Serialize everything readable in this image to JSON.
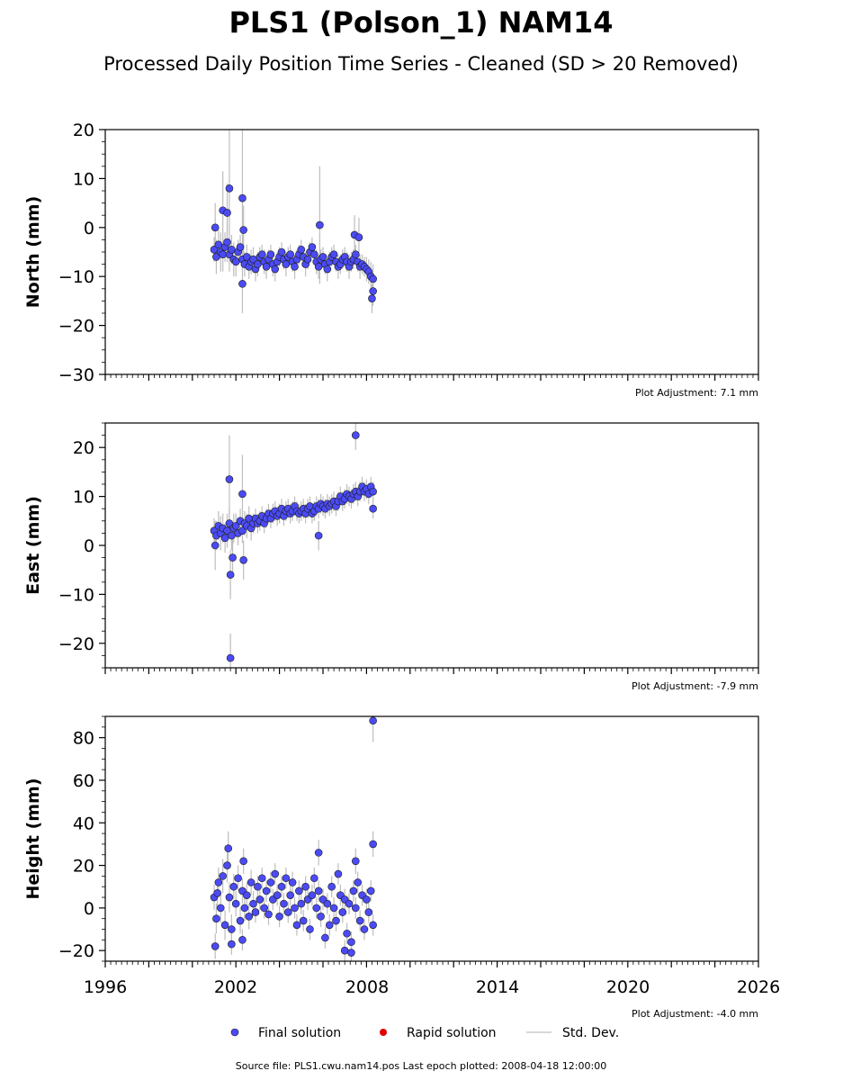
{
  "title": "PLS1 (Polson_1) NAM14",
  "subtitle": "Processed Daily Position Time Series - Cleaned (SD > 20 Removed)",
  "x_ticks": [
    "1996",
    "2002",
    "2008",
    "2014",
    "2020",
    "2026"
  ],
  "legend": {
    "final": "Final solution",
    "rapid": "Rapid solution",
    "std": "Std. Dev."
  },
  "footer": "Source file: PLS1.cwu.nam14.pos  Last epoch plotted: 2008-04-18 12:00:00",
  "colors": {
    "final": "#4b4bf5",
    "rapid": "#e00000",
    "std": "#bdbdbd",
    "marker_edge": "#1a1a1a"
  },
  "chart_data": [
    {
      "type": "scatter",
      "ylabel": "North (mm)",
      "xlim": [
        1996,
        2026
      ],
      "ylim": [
        -30,
        20
      ],
      "yticks": [
        -30,
        -20,
        -10,
        0,
        10,
        20
      ],
      "note": "Plot Adjustment: 7.1 mm",
      "series": [
        {
          "name": "Final solution",
          "x": [
            2001.0,
            2001.1,
            2001.2,
            2001.3,
            2001.4,
            2001.5,
            2001.6,
            2001.7,
            2001.8,
            2001.9,
            2002.0,
            2002.1,
            2002.2,
            2002.3,
            2002.4,
            2002.5,
            2002.6,
            2002.7,
            2002.8,
            2002.9,
            2003.0,
            2003.1,
            2003.2,
            2003.3,
            2003.4,
            2003.5,
            2003.6,
            2003.7,
            2003.8,
            2003.9,
            2004.0,
            2004.1,
            2004.2,
            2004.3,
            2004.4,
            2004.5,
            2004.6,
            2004.7,
            2004.8,
            2004.9,
            2005.0,
            2005.1,
            2005.2,
            2005.3,
            2005.4,
            2005.5,
            2005.6,
            2005.7,
            2005.8,
            2005.9,
            2006.0,
            2006.1,
            2006.2,
            2006.3,
            2006.4,
            2006.5,
            2006.6,
            2006.7,
            2006.8,
            2006.9,
            2007.0,
            2007.1,
            2007.2,
            2007.3,
            2007.4,
            2007.5,
            2007.6,
            2007.7,
            2007.8,
            2007.9,
            2008.0,
            2008.1,
            2008.2,
            2008.3
          ],
          "y": [
            -4.5,
            -6.0,
            -3.5,
            -5.0,
            -5.5,
            -4.0,
            -3.0,
            -5.5,
            -4.5,
            -6.5,
            -7.0,
            -5.0,
            -4.0,
            -6.5,
            -7.5,
            -6.0,
            -8.0,
            -7.0,
            -6.5,
            -8.5,
            -7.5,
            -6.0,
            -5.5,
            -7.0,
            -8.0,
            -6.5,
            -5.5,
            -7.5,
            -8.5,
            -7.0,
            -6.0,
            -5.0,
            -6.5,
            -7.5,
            -6.0,
            -5.5,
            -7.0,
            -8.0,
            -6.5,
            -5.5,
            -4.5,
            -6.0,
            -7.5,
            -6.5,
            -5.0,
            -4.0,
            -5.5,
            -7.0,
            -8.0,
            -6.5,
            -6.0,
            -7.5,
            -8.5,
            -7.0,
            -6.0,
            -5.5,
            -7.0,
            -8.0,
            -7.5,
            -6.5,
            -6.0,
            -7.0,
            -8.0,
            -7.0,
            -6.5,
            -5.5,
            -7.0,
            -8.0,
            -7.5,
            -8.0,
            -8.5,
            -9.0,
            -10.0,
            -10.5
          ],
          "err": [
            2.5,
            3.5,
            3.0,
            4.0,
            3.5,
            3.0,
            4.0,
            3.5,
            3.0,
            3.5,
            3.0,
            2.5,
            2.5,
            2.5,
            2.5,
            2.5,
            2.5,
            2.5,
            2.5,
            2.5,
            2.5,
            2.0,
            2.0,
            2.5,
            2.5,
            2.0,
            2.0,
            2.5,
            2.5,
            2.0,
            2.0,
            2.0,
            2.0,
            2.5,
            2.0,
            2.0,
            2.0,
            2.5,
            2.0,
            2.0,
            2.0,
            2.0,
            2.5,
            2.0,
            2.0,
            2.0,
            2.0,
            2.5,
            2.5,
            2.0,
            2.0,
            2.0,
            2.5,
            2.0,
            2.0,
            2.0,
            2.0,
            2.5,
            2.0,
            2.0,
            2.0,
            2.0,
            2.5,
            2.0,
            2.0,
            2.0,
            2.0,
            2.5,
            2.0,
            2.0,
            2.5,
            2.5,
            3.0,
            3.0
          ]
        },
        {
          "name": "Final solution",
          "x": [
            2001.05,
            2001.4,
            2001.6,
            2001.7,
            2002.3,
            2002.35,
            2002.3,
            2005.85,
            2007.45,
            2007.65,
            2008.25,
            2008.3
          ],
          "y": [
            0.0,
            3.5,
            3.0,
            8.0,
            6.0,
            -0.5,
            -11.5,
            0.5,
            -1.5,
            -2.0,
            -14.5,
            -13.0
          ],
          "err": [
            5.0,
            8.0,
            6.0,
            12.0,
            14.0,
            5.0,
            6.0,
            12.0,
            4.0,
            4.0,
            3.0,
            3.0
          ]
        }
      ]
    },
    {
      "type": "scatter",
      "ylabel": "East (mm)",
      "xlim": [
        1996,
        2026
      ],
      "ylim": [
        -25,
        25
      ],
      "yticks": [
        -20,
        -10,
        0,
        10,
        20
      ],
      "note": "Plot Adjustment: -7.9 mm",
      "series": [
        {
          "name": "Final solution",
          "x": [
            2001.0,
            2001.1,
            2001.2,
            2001.3,
            2001.4,
            2001.5,
            2001.6,
            2001.7,
            2001.8,
            2001.9,
            2002.0,
            2002.1,
            2002.2,
            2002.3,
            2002.4,
            2002.5,
            2002.6,
            2002.7,
            2002.8,
            2002.9,
            2003.0,
            2003.1,
            2003.2,
            2003.3,
            2003.4,
            2003.5,
            2003.6,
            2003.7,
            2003.8,
            2003.9,
            2004.0,
            2004.1,
            2004.2,
            2004.3,
            2004.4,
            2004.5,
            2004.6,
            2004.7,
            2004.8,
            2004.9,
            2005.0,
            2005.1,
            2005.2,
            2005.3,
            2005.4,
            2005.5,
            2005.6,
            2005.7,
            2005.8,
            2005.9,
            2006.0,
            2006.1,
            2006.2,
            2006.3,
            2006.4,
            2006.5,
            2006.6,
            2006.7,
            2006.8,
            2006.9,
            2007.0,
            2007.1,
            2007.2,
            2007.3,
            2007.4,
            2007.5,
            2007.6,
            2007.7,
            2007.8,
            2007.9,
            2008.0,
            2008.1,
            2008.2,
            2008.3
          ],
          "y": [
            3.0,
            2.0,
            4.0,
            2.5,
            3.5,
            1.5,
            3.0,
            4.5,
            2.0,
            3.5,
            4.0,
            2.5,
            5.0,
            3.0,
            4.5,
            4.0,
            5.5,
            3.5,
            4.5,
            5.5,
            4.5,
            5.0,
            6.0,
            4.5,
            5.5,
            6.5,
            5.5,
            6.5,
            7.0,
            6.0,
            6.5,
            7.5,
            6.0,
            7.0,
            7.5,
            6.5,
            7.0,
            8.0,
            7.0,
            6.5,
            7.0,
            7.5,
            6.5,
            7.5,
            8.0,
            6.5,
            7.0,
            8.0,
            7.5,
            8.5,
            8.0,
            7.5,
            8.5,
            8.0,
            8.5,
            9.0,
            8.0,
            9.0,
            10.0,
            9.0,
            9.5,
            10.5,
            10.0,
            9.5,
            10.5,
            11.0,
            10.0,
            11.0,
            12.0,
            11.0,
            11.5,
            10.5,
            12.0,
            11.0
          ],
          "err": [
            2.5,
            3.0,
            3.0,
            3.5,
            3.0,
            3.0,
            3.5,
            3.0,
            3.0,
            3.0,
            2.5,
            2.5,
            2.5,
            2.5,
            2.5,
            2.5,
            2.5,
            2.5,
            2.0,
            2.0,
            2.0,
            2.0,
            2.0,
            2.0,
            2.0,
            2.0,
            2.0,
            2.0,
            2.0,
            2.0,
            2.0,
            2.0,
            2.0,
            2.0,
            2.0,
            2.0,
            2.0,
            2.0,
            2.0,
            2.0,
            2.0,
            2.0,
            2.0,
            2.0,
            2.0,
            2.0,
            2.0,
            2.0,
            2.0,
            2.0,
            2.0,
            2.0,
            2.0,
            2.0,
            2.0,
            2.0,
            2.0,
            2.0,
            2.0,
            2.0,
            2.0,
            2.0,
            2.0,
            2.0,
            2.0,
            2.0,
            2.0,
            2.0,
            2.0,
            2.0,
            2.0,
            2.0,
            2.0,
            2.0
          ]
        },
        {
          "name": "Final solution",
          "x": [
            2001.05,
            2001.7,
            2001.75,
            2001.85,
            2002.3,
            2002.35,
            2005.8,
            2007.5,
            2008.3,
            2001.75
          ],
          "y": [
            0.0,
            13.5,
            -6.0,
            -2.5,
            10.5,
            -3.0,
            2.0,
            22.5,
            7.5,
            -23.0
          ],
          "err": [
            5.0,
            9.0,
            5.0,
            4.0,
            8.0,
            4.0,
            3.0,
            3.0,
            2.0,
            5.0
          ]
        }
      ]
    },
    {
      "type": "scatter",
      "ylabel": "Height (mm)",
      "xlim": [
        1996,
        2026
      ],
      "ylim": [
        -25,
        90
      ],
      "yticks": [
        -20,
        0,
        20,
        40,
        60,
        80
      ],
      "note": "Plot Adjustment: -4.0 mm",
      "series": [
        {
          "name": "Final solution",
          "x": [
            2001.0,
            2001.1,
            2001.2,
            2001.3,
            2001.4,
            2001.5,
            2001.6,
            2001.7,
            2001.8,
            2001.9,
            2002.0,
            2002.1,
            2002.2,
            2002.3,
            2002.4,
            2002.5,
            2002.6,
            2002.7,
            2002.8,
            2002.9,
            2003.0,
            2003.1,
            2003.2,
            2003.3,
            2003.4,
            2003.5,
            2003.6,
            2003.7,
            2003.8,
            2003.9,
            2004.0,
            2004.1,
            2004.2,
            2004.3,
            2004.4,
            2004.5,
            2004.6,
            2004.7,
            2004.8,
            2004.9,
            2005.0,
            2005.1,
            2005.2,
            2005.3,
            2005.4,
            2005.5,
            2005.6,
            2005.7,
            2005.8,
            2005.9,
            2006.0,
            2006.1,
            2006.2,
            2006.3,
            2006.4,
            2006.5,
            2006.6,
            2006.7,
            2006.8,
            2006.9,
            2007.0,
            2007.1,
            2007.2,
            2007.3,
            2007.4,
            2007.5,
            2007.6,
            2007.7,
            2007.8,
            2007.9,
            2008.0,
            2008.1,
            2008.2,
            2008.3
          ],
          "y": [
            5.0,
            -5.0,
            12.0,
            0.0,
            15.0,
            -8.0,
            20.0,
            5.0,
            -10.0,
            10.0,
            2.0,
            14.0,
            -6.0,
            8.0,
            0.0,
            6.0,
            -4.0,
            12.0,
            2.0,
            -2.0,
            10.0,
            4.0,
            14.0,
            0.0,
            8.0,
            -3.0,
            12.0,
            4.0,
            16.0,
            6.0,
            -4.0,
            10.0,
            2.0,
            14.0,
            -2.0,
            6.0,
            12.0,
            0.0,
            -8.0,
            8.0,
            2.0,
            -6.0,
            10.0,
            4.0,
            -10.0,
            6.0,
            14.0,
            0.0,
            8.0,
            -4.0,
            4.0,
            -14.0,
            2.0,
            -8.0,
            10.0,
            0.0,
            -6.0,
            16.0,
            6.0,
            -2.0,
            4.0,
            -12.0,
            2.0,
            -16.0,
            8.0,
            0.0,
            12.0,
            -6.0,
            6.0,
            -10.0,
            4.0,
            -2.0,
            8.0,
            -8.0
          ],
          "err": [
            6.0,
            7.0,
            7.0,
            7.0,
            8.0,
            7.0,
            8.0,
            7.0,
            7.0,
            6.0,
            6.0,
            6.0,
            6.0,
            6.0,
            6.0,
            6.0,
            6.0,
            6.0,
            6.0,
            5.0,
            5.0,
            5.0,
            5.0,
            5.0,
            5.0,
            5.0,
            5.0,
            5.0,
            5.0,
            5.0,
            5.0,
            5.0,
            5.0,
            5.0,
            5.0,
            5.0,
            5.0,
            5.0,
            5.0,
            5.0,
            5.0,
            5.0,
            5.0,
            5.0,
            5.0,
            5.0,
            5.0,
            5.0,
            5.0,
            5.0,
            5.0,
            5.0,
            5.0,
            5.0,
            5.0,
            5.0,
            5.0,
            5.0,
            5.0,
            5.0,
            5.0,
            5.0,
            5.0,
            5.0,
            5.0,
            5.0,
            5.0,
            5.0,
            5.0,
            5.0,
            5.0,
            5.0,
            5.0,
            5.0
          ]
        },
        {
          "name": "Final solution",
          "x": [
            2001.65,
            2001.05,
            2001.8,
            2002.35,
            2005.8,
            2007.0,
            2007.5,
            2007.3,
            2008.3,
            2008.3,
            2001.15,
            2002.3
          ],
          "y": [
            28.0,
            -18.0,
            -17.0,
            22.0,
            26.0,
            -20.0,
            22.0,
            -21.0,
            30.0,
            88.0,
            7.0,
            -15.0
          ],
          "err": [
            8.0,
            6.0,
            5.0,
            6.0,
            6.0,
            5.0,
            6.0,
            5.0,
            6.0,
            10.0,
            6.0,
            5.0
          ]
        }
      ]
    }
  ]
}
